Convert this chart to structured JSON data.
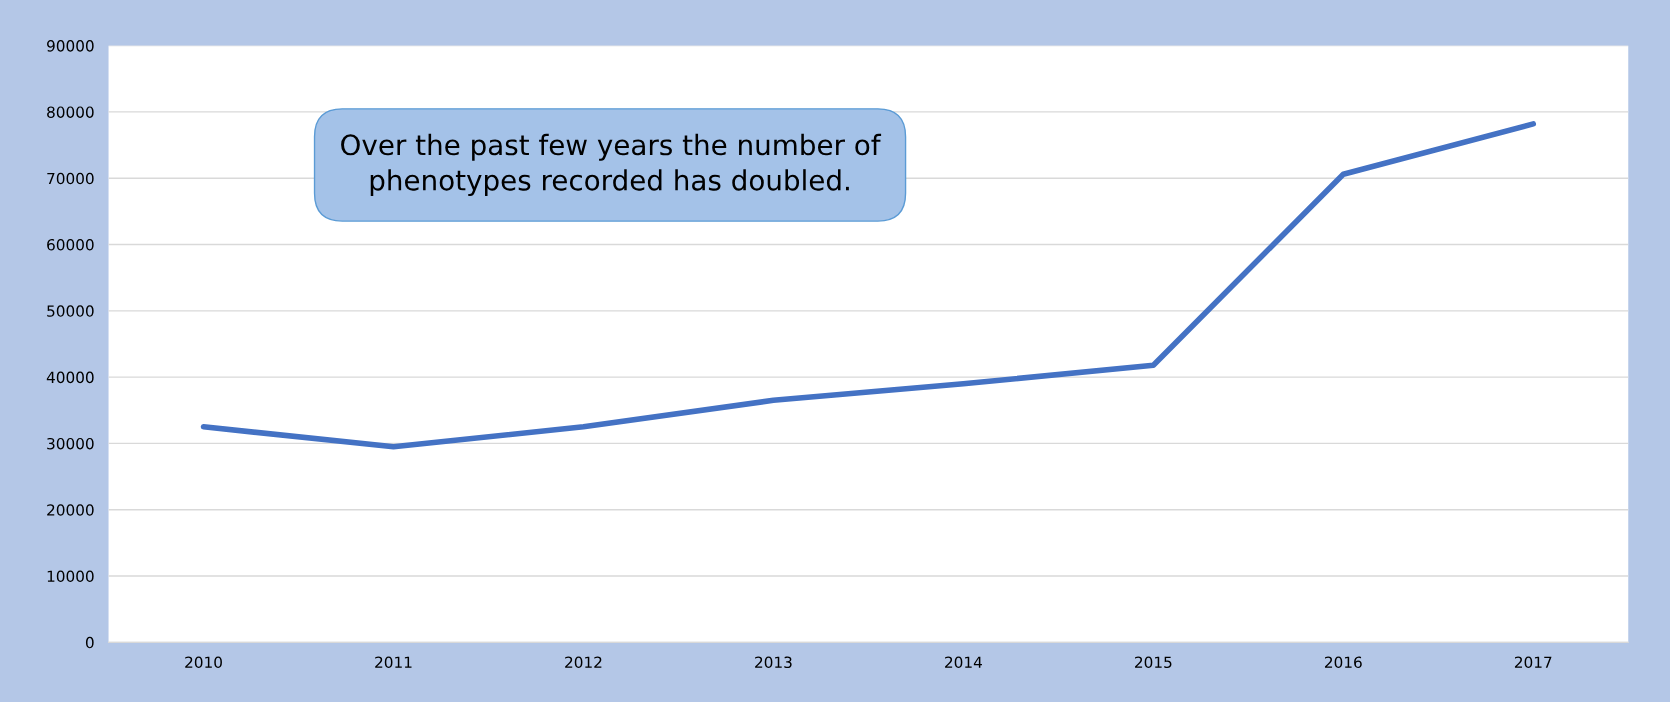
{
  "chart_data": {
    "type": "line",
    "categories": [
      "2010",
      "2011",
      "2012",
      "2013",
      "2014",
      "2015",
      "2016",
      "2017"
    ],
    "series": [
      {
        "color": "#4472c4",
        "values": [
          32500,
          29500,
          32500,
          36500,
          39000,
          41800,
          70600,
          78200
        ]
      }
    ],
    "ylim": [
      0,
      90000
    ],
    "yticks": [
      0,
      10000,
      20000,
      30000,
      40000,
      50000,
      60000,
      70000,
      80000,
      90000
    ],
    "grid": "y",
    "marker": "none",
    "line_style": "solid",
    "annotations": [
      "Over the past few years the number of\nphenotypes recorded has doubled."
    ]
  }
}
